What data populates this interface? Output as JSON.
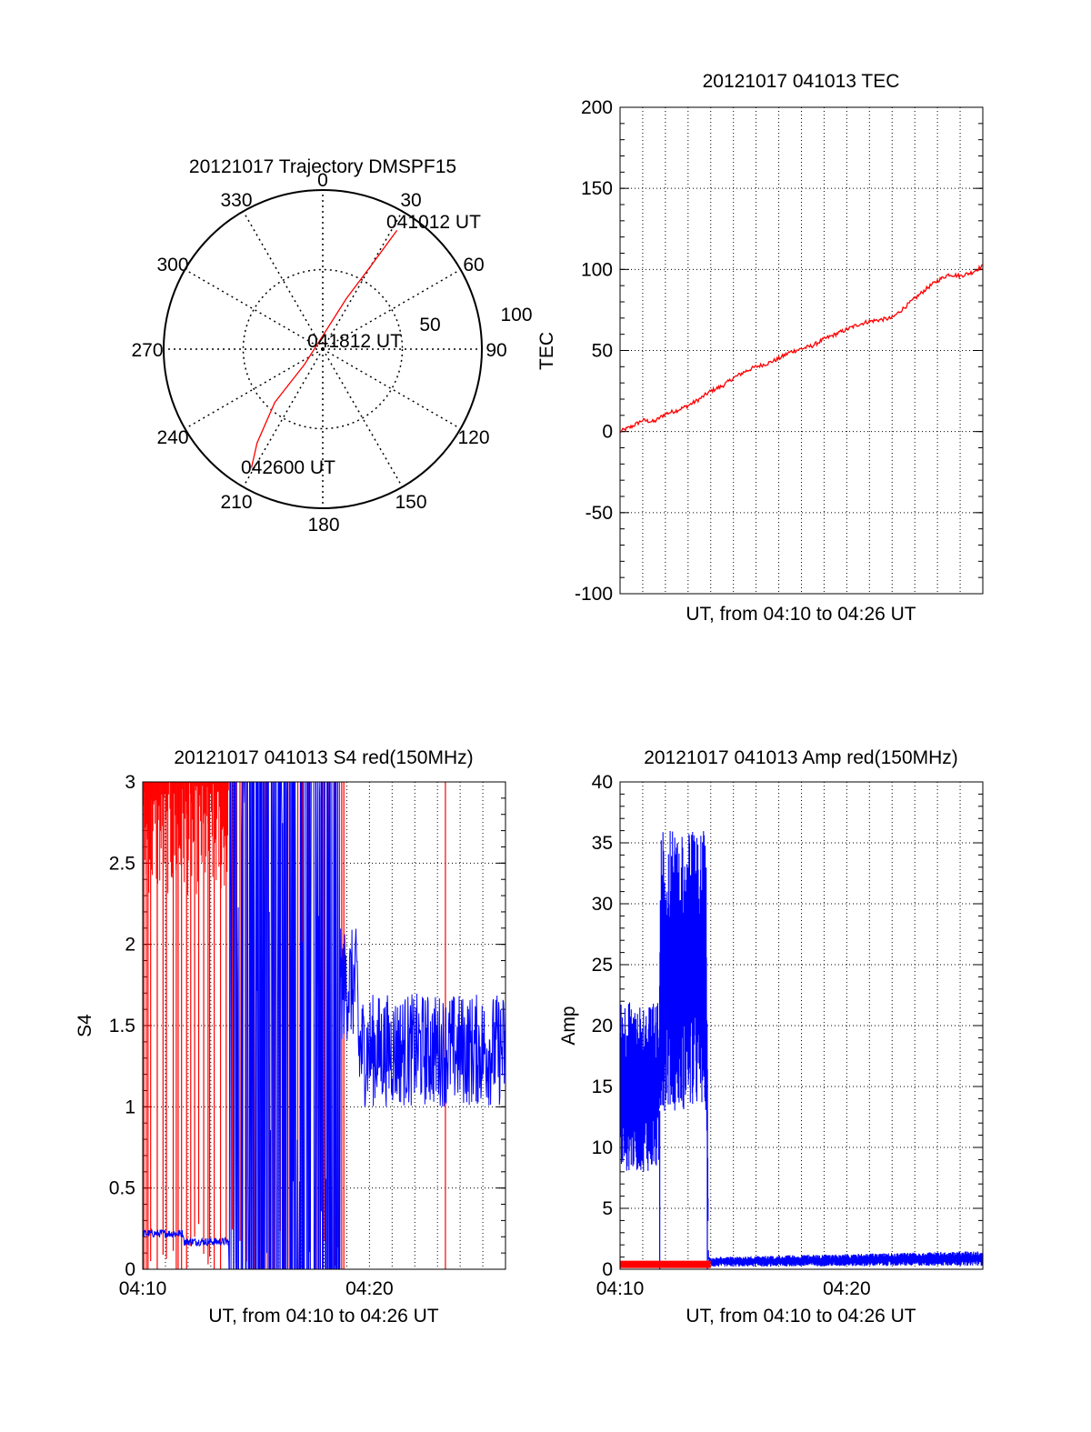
{
  "colors": {
    "red": "#ff0000",
    "blue": "#0000ff",
    "axis": "#000000",
    "grid": "#000000"
  },
  "chart_data": [
    {
      "type": "polar",
      "title": "20121017 Trajectory DMSPF15",
      "angle_labels": [
        "0",
        "30",
        "60",
        "90",
        "120",
        "150",
        "180",
        "210",
        "240",
        "270",
        "300",
        "330"
      ],
      "radial_labels": [
        "50",
        "100"
      ],
      "grid": true,
      "trajectory": {
        "color": "red",
        "points": [
          {
            "azimuth": 32,
            "zenith": 88
          },
          {
            "azimuth": 30,
            "zenith": 60
          },
          {
            "azimuth": 25,
            "zenith": 35
          },
          {
            "azimuth": 15,
            "zenith": 15
          },
          {
            "azimuth": 230,
            "zenith": 15
          },
          {
            "azimuth": 222,
            "zenith": 45
          },
          {
            "azimuth": 215,
            "zenith": 72
          },
          {
            "azimuth": 211,
            "zenith": 87
          }
        ],
        "start_label": "041012 UT",
        "mid_label": "041812 UT",
        "end_label": "042600 UT"
      }
    },
    {
      "type": "line",
      "title": "20121017 041013 TEC",
      "xlabel": "UT, from 04:10 to 04:26 UT",
      "ylabel": "TEC",
      "ylim": [
        -100,
        200
      ],
      "yticks": [
        "-100",
        "-50",
        "0",
        "50",
        "100",
        "150",
        "200"
      ],
      "xlim": [
        0,
        16
      ],
      "grid": true,
      "series": [
        {
          "color": "red",
          "x": [
            0,
            0.5,
            1,
            1.5,
            2,
            2.5,
            3,
            3.5,
            4,
            4.5,
            5,
            5.5,
            6,
            6.5,
            7,
            7.5,
            8,
            8.5,
            9,
            9.5,
            10,
            10.5,
            11,
            11.5,
            12,
            12.5,
            13,
            13.5,
            14,
            14.5,
            15,
            15.5,
            16
          ],
          "y": [
            0,
            3,
            7,
            6,
            11,
            13,
            16,
            20,
            25,
            28,
            33,
            37,
            40,
            42,
            45,
            49,
            51,
            53,
            57,
            60,
            63,
            66,
            68,
            69,
            70,
            76,
            82,
            88,
            93,
            97,
            96,
            98,
            102
          ]
        }
      ]
    },
    {
      "type": "line",
      "title": "20121017 041013 S4 red(150MHz)",
      "xlabel": "UT, from 04:10 to 04:26 UT",
      "ylabel": "S4",
      "ylim": [
        0,
        3
      ],
      "yticks": [
        "0",
        "0.5",
        "1",
        "1.5",
        "2",
        "2.5",
        "3"
      ],
      "xlim": [
        0,
        16
      ],
      "xticks": [
        {
          "x": 0,
          "label": "04:10"
        },
        {
          "x": 10,
          "label": "04:20"
        }
      ],
      "grid": true,
      "series": [
        {
          "color": "blue",
          "description_x_range": [
            0,
            16
          ],
          "x": [
            0,
            1,
            1.5,
            2,
            3,
            3.8,
            4,
            5,
            6,
            7,
            8,
            8.5,
            9,
            10,
            11,
            12,
            13,
            14,
            15,
            16
          ],
          "y": [
            0.22,
            0.21,
            0.22,
            0.17,
            0.17,
            0.17,
            3,
            3,
            3,
            3,
            3,
            2.0,
            1.5,
            1.55,
            1.4,
            1.45,
            1.35,
            1.4,
            1.3,
            1.35
          ]
        },
        {
          "color": "red",
          "x": [
            0,
            1,
            2,
            3,
            4,
            5,
            6,
            7,
            8,
            8.8,
            13.4
          ],
          "y": [
            3,
            3,
            3,
            3,
            3,
            3,
            3,
            3,
            3,
            3,
            3
          ]
        }
      ]
    },
    {
      "type": "line",
      "title": "20121017 041013 Amp red(150MHz)",
      "xlabel": "UT, from 04:10 to 04:26 UT",
      "ylabel": "Amp",
      "ylim": [
        0,
        40
      ],
      "yticks": [
        "0",
        "5",
        "10",
        "15",
        "20",
        "25",
        "30",
        "35",
        "40"
      ],
      "xlim": [
        0,
        16
      ],
      "xticks": [
        {
          "x": 0,
          "label": "04:10"
        },
        {
          "x": 10,
          "label": "04:20"
        }
      ],
      "grid": true,
      "series": [
        {
          "color": "blue",
          "x": [
            0,
            1.7,
            1.8,
            3.8,
            3.9,
            16
          ],
          "y": [
            15,
            15,
            24,
            24,
            0.5,
            0.8
          ],
          "band_low": [
            8,
            8,
            13,
            13,
            0.2,
            0.3
          ],
          "band_high": [
            22,
            22,
            36,
            36,
            1.0,
            1.5
          ]
        },
        {
          "color": "red",
          "x": [
            0,
            4
          ],
          "y": [
            0.4,
            0.4
          ]
        }
      ]
    }
  ]
}
